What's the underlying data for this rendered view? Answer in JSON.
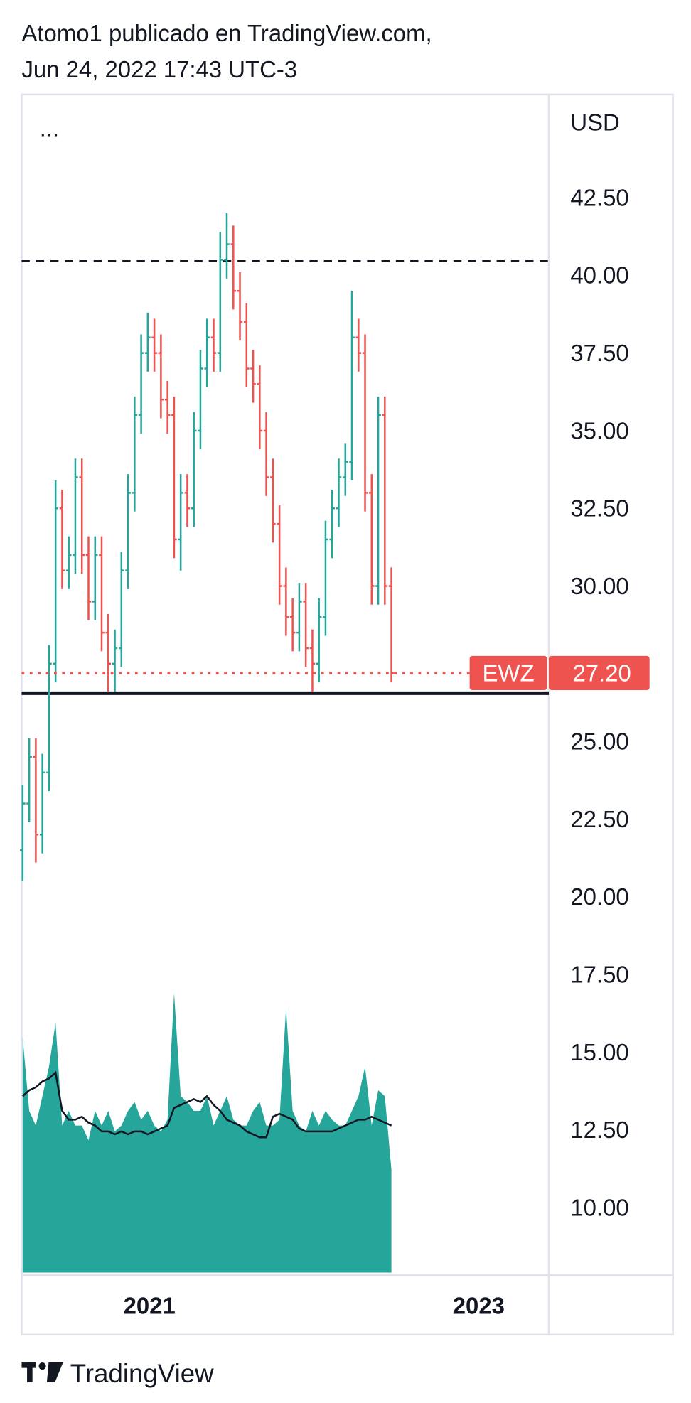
{
  "chart_data": {
    "type": "ohlc",
    "header": [
      "Atomo1 publicado en TradingView.com,",
      "Jun 24, 2022 17:43 UTC-3"
    ],
    "menu": "...",
    "y_label": "USD",
    "brand": "TradingView",
    "up_color": "#26a69a",
    "down_color": "#ef5350",
    "x": [
      2020.23,
      2020.27,
      2020.31,
      2020.35,
      2020.39,
      2020.43,
      2020.47,
      2020.51,
      2020.55,
      2020.59,
      2020.63,
      2020.67,
      2020.71,
      2020.75,
      2020.79,
      2020.83,
      2020.87,
      2020.91,
      2020.95,
      2020.99,
      2021.03,
      2021.07,
      2021.11,
      2021.15,
      2021.19,
      2021.23,
      2021.27,
      2021.31,
      2021.35,
      2021.39,
      2021.43,
      2021.47,
      2021.51,
      2021.55,
      2021.59,
      2021.63,
      2021.67,
      2021.71,
      2021.75,
      2021.79,
      2021.83,
      2021.87,
      2021.91,
      2021.95,
      2021.99,
      2022.03,
      2022.07,
      2022.11,
      2022.15,
      2022.19,
      2022.23,
      2022.27,
      2022.31,
      2022.35,
      2022.39,
      2022.43,
      2022.47
    ],
    "open": [
      21.5,
      23.0,
      24.5,
      22.0,
      24.0,
      27.5,
      32.5,
      30.5,
      31.0,
      33.5,
      31.0,
      29.5,
      31.0,
      28.5,
      27.5,
      28.0,
      30.5,
      33.0,
      35.5,
      37.5,
      38.0,
      37.5,
      36.0,
      35.5,
      31.5,
      33.0,
      32.5,
      35.0,
      37.0,
      38.0,
      37.5,
      40.5,
      41.0,
      39.5,
      38.5,
      37.0,
      36.5,
      35.0,
      33.5,
      32.0,
      30.0,
      29.0,
      28.5,
      29.5,
      28.0,
      27.5,
      29.0,
      31.5,
      32.5,
      33.5,
      34.0,
      38.0,
      37.5,
      33.0,
      30.0,
      35.5,
      30.0
    ],
    "high": [
      23.6,
      25.1,
      25.1,
      24.6,
      28.1,
      33.4,
      33.1,
      31.6,
      34.1,
      34.1,
      31.6,
      31.6,
      31.6,
      29.1,
      28.6,
      31.1,
      33.6,
      36.1,
      38.1,
      38.8,
      38.6,
      38.1,
      36.6,
      36.1,
      33.6,
      33.6,
      35.6,
      37.6,
      38.6,
      38.6,
      41.4,
      42.0,
      41.6,
      40.1,
      39.1,
      37.6,
      37.1,
      35.6,
      34.1,
      32.6,
      30.6,
      29.6,
      30.1,
      30.1,
      28.6,
      29.6,
      32.1,
      33.1,
      34.1,
      34.6,
      39.5,
      38.6,
      38.1,
      33.6,
      36.1,
      36.1,
      30.6
    ],
    "low": [
      20.5,
      22.4,
      21.1,
      21.4,
      23.4,
      26.9,
      29.9,
      29.9,
      30.4,
      30.4,
      28.9,
      28.9,
      27.9,
      26.6,
      26.6,
      27.4,
      29.9,
      32.4,
      34.9,
      36.9,
      36.9,
      35.4,
      34.9,
      30.9,
      30.5,
      31.9,
      31.9,
      34.4,
      36.4,
      36.9,
      36.9,
      39.9,
      38.9,
      37.9,
      36.4,
      35.9,
      34.4,
      32.9,
      31.4,
      29.4,
      28.4,
      27.9,
      27.9,
      27.4,
      26.6,
      26.9,
      28.4,
      30.9,
      31.9,
      32.9,
      33.4,
      36.9,
      32.4,
      29.4,
      29.4,
      29.4,
      26.9
    ],
    "close": [
      23.0,
      24.5,
      22.0,
      24.0,
      27.5,
      32.5,
      30.5,
      31.0,
      33.5,
      31.0,
      29.5,
      31.0,
      28.5,
      27.5,
      28.0,
      30.5,
      33.0,
      35.5,
      37.5,
      38.0,
      37.5,
      36.0,
      35.5,
      31.5,
      33.0,
      32.5,
      35.0,
      37.0,
      38.0,
      37.5,
      40.5,
      41.0,
      39.5,
      38.5,
      37.0,
      36.5,
      35.0,
      33.5,
      32.0,
      30.0,
      29.0,
      28.5,
      29.5,
      28.0,
      27.5,
      29.0,
      31.5,
      32.5,
      33.5,
      34.0,
      38.0,
      37.5,
      33.0,
      30.0,
      35.5,
      30.0,
      27.2
    ],
    "volume": {
      "color": "#26a69a",
      "ma_color": "#131722",
      "vlim": [
        0,
        100
      ],
      "values": [
        80,
        55,
        50,
        60,
        70,
        85,
        50,
        55,
        50,
        50,
        45,
        55,
        50,
        55,
        48,
        50,
        55,
        58,
        52,
        55,
        50,
        48,
        52,
        95,
        60,
        58,
        55,
        55,
        60,
        50,
        55,
        60,
        52,
        50,
        50,
        55,
        58,
        50,
        50,
        52,
        90,
        55,
        50,
        48,
        55,
        50,
        55,
        52,
        50,
        50,
        55,
        60,
        70,
        50,
        62,
        60,
        35
      ],
      "ma": [
        60,
        62,
        63,
        65,
        66,
        68,
        55,
        52,
        52,
        53,
        51,
        50,
        48,
        48,
        47,
        48,
        47,
        48,
        48,
        47,
        48,
        49,
        50,
        56,
        57,
        58,
        59,
        58,
        60,
        57,
        55,
        52,
        51,
        50,
        48,
        47,
        46,
        46,
        53,
        54,
        53,
        52,
        49,
        48,
        48,
        48,
        48,
        48,
        49,
        50,
        51,
        52,
        52,
        53,
        52,
        51,
        50
      ]
    },
    "hlines": [
      {
        "value": 40.46,
        "style": "dashed",
        "color": "#131722"
      },
      {
        "value": 26.55,
        "style": "solid",
        "color": "#131722"
      }
    ],
    "price_line": {
      "value": 27.2,
      "label": "27.20",
      "symbol": "EWZ",
      "color": "#ef5350"
    },
    "ylim": [
      7.82,
      45.82
    ],
    "yticks": [
      {
        "value": 42.5,
        "label": "42.50"
      },
      {
        "value": 40,
        "label": "40.00"
      },
      {
        "value": 37.5,
        "label": "37.50"
      },
      {
        "value": 35,
        "label": "35.00"
      },
      {
        "value": 32.5,
        "label": "32.50"
      },
      {
        "value": 30,
        "label": "30.00"
      },
      {
        "value": 25,
        "label": "25.00"
      },
      {
        "value": 22.5,
        "label": "22.50"
      },
      {
        "value": 20,
        "label": "20.00"
      },
      {
        "value": 17.5,
        "label": "17.50"
      },
      {
        "value": 15,
        "label": "15.00"
      },
      {
        "value": 12.5,
        "label": "12.50"
      },
      {
        "value": 10,
        "label": "10.00"
      }
    ],
    "xlim": [
      2020.224,
      2023.426
    ],
    "xticks": [
      2021,
      2023
    ]
  }
}
